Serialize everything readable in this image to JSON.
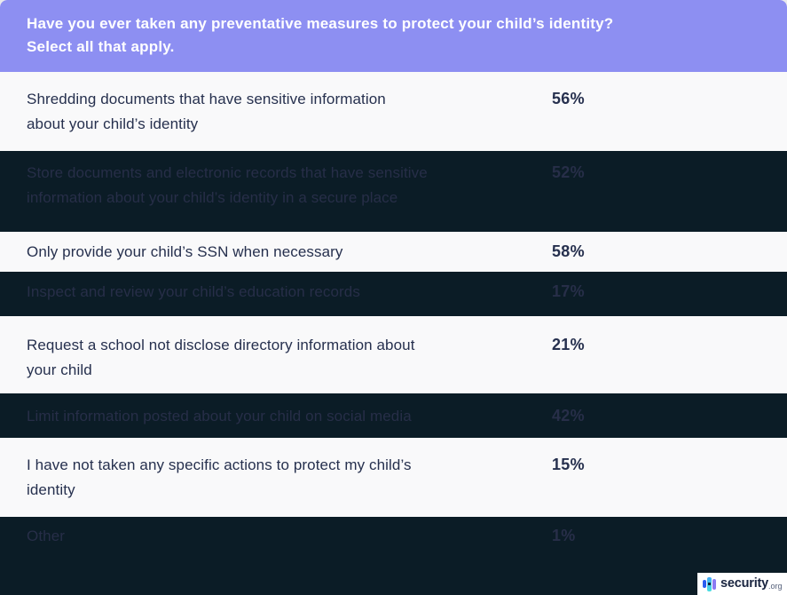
{
  "header": {
    "line1": "Have you ever taken any preventative measures to protect your child’s identity?",
    "line2": "Select all that apply."
  },
  "rows": [
    {
      "label": "Shredding documents that have sensitive information\nabout your child’s identity",
      "value": "56%",
      "theme": "light"
    },
    {
      "label": "Store documents and electronic records that have sensitive\ninformation about your child’s identity in a secure place",
      "value": "52%",
      "theme": "dark"
    },
    {
      "label": "Only provide your child’s SSN when necessary",
      "value": "58%",
      "theme": "light"
    },
    {
      "label": "Inspect and review your child’s education records",
      "value": "17%",
      "theme": "dark"
    },
    {
      "label": "Request a school not disclose directory information about\nyour child",
      "value": "21%",
      "theme": "light"
    },
    {
      "label": "Limit information posted about your child on social media",
      "value": "42%",
      "theme": "dark"
    },
    {
      "label": "I have not taken any specific actions to protect my child’s\nidentity",
      "value": "15%",
      "theme": "light"
    },
    {
      "label": "Other",
      "value": "1%",
      "theme": "dark"
    }
  ],
  "logo": {
    "brand": "security",
    "tld": ".org"
  },
  "colors": {
    "header_bg": "#8d8ff2",
    "header_text": "#ffffff",
    "light_row_bg": "#f9f9fa",
    "light_row_text": "#26304e",
    "dark_row_bg": "#0b1c26",
    "dark_row_text": "#272e48"
  },
  "chart_data": {
    "type": "table",
    "title": "Have you ever taken any preventative measures to protect your child’s identity? Select all that apply.",
    "categories": [
      "Shredding documents that have sensitive information about your child’s identity",
      "Store documents and electronic records that have sensitive information about your child’s identity in a secure place",
      "Only provide your child’s SSN when necessary",
      "Inspect and review your child’s education records",
      "Request a school not disclose directory information about your child",
      "Limit information posted about your child on social media",
      "I have not taken any specific actions to protect my child’s identity",
      "Other"
    ],
    "values": [
      56,
      52,
      58,
      17,
      21,
      42,
      15,
      1
    ],
    "unit": "%",
    "legend_position": "none",
    "source_brand": "security.org"
  }
}
